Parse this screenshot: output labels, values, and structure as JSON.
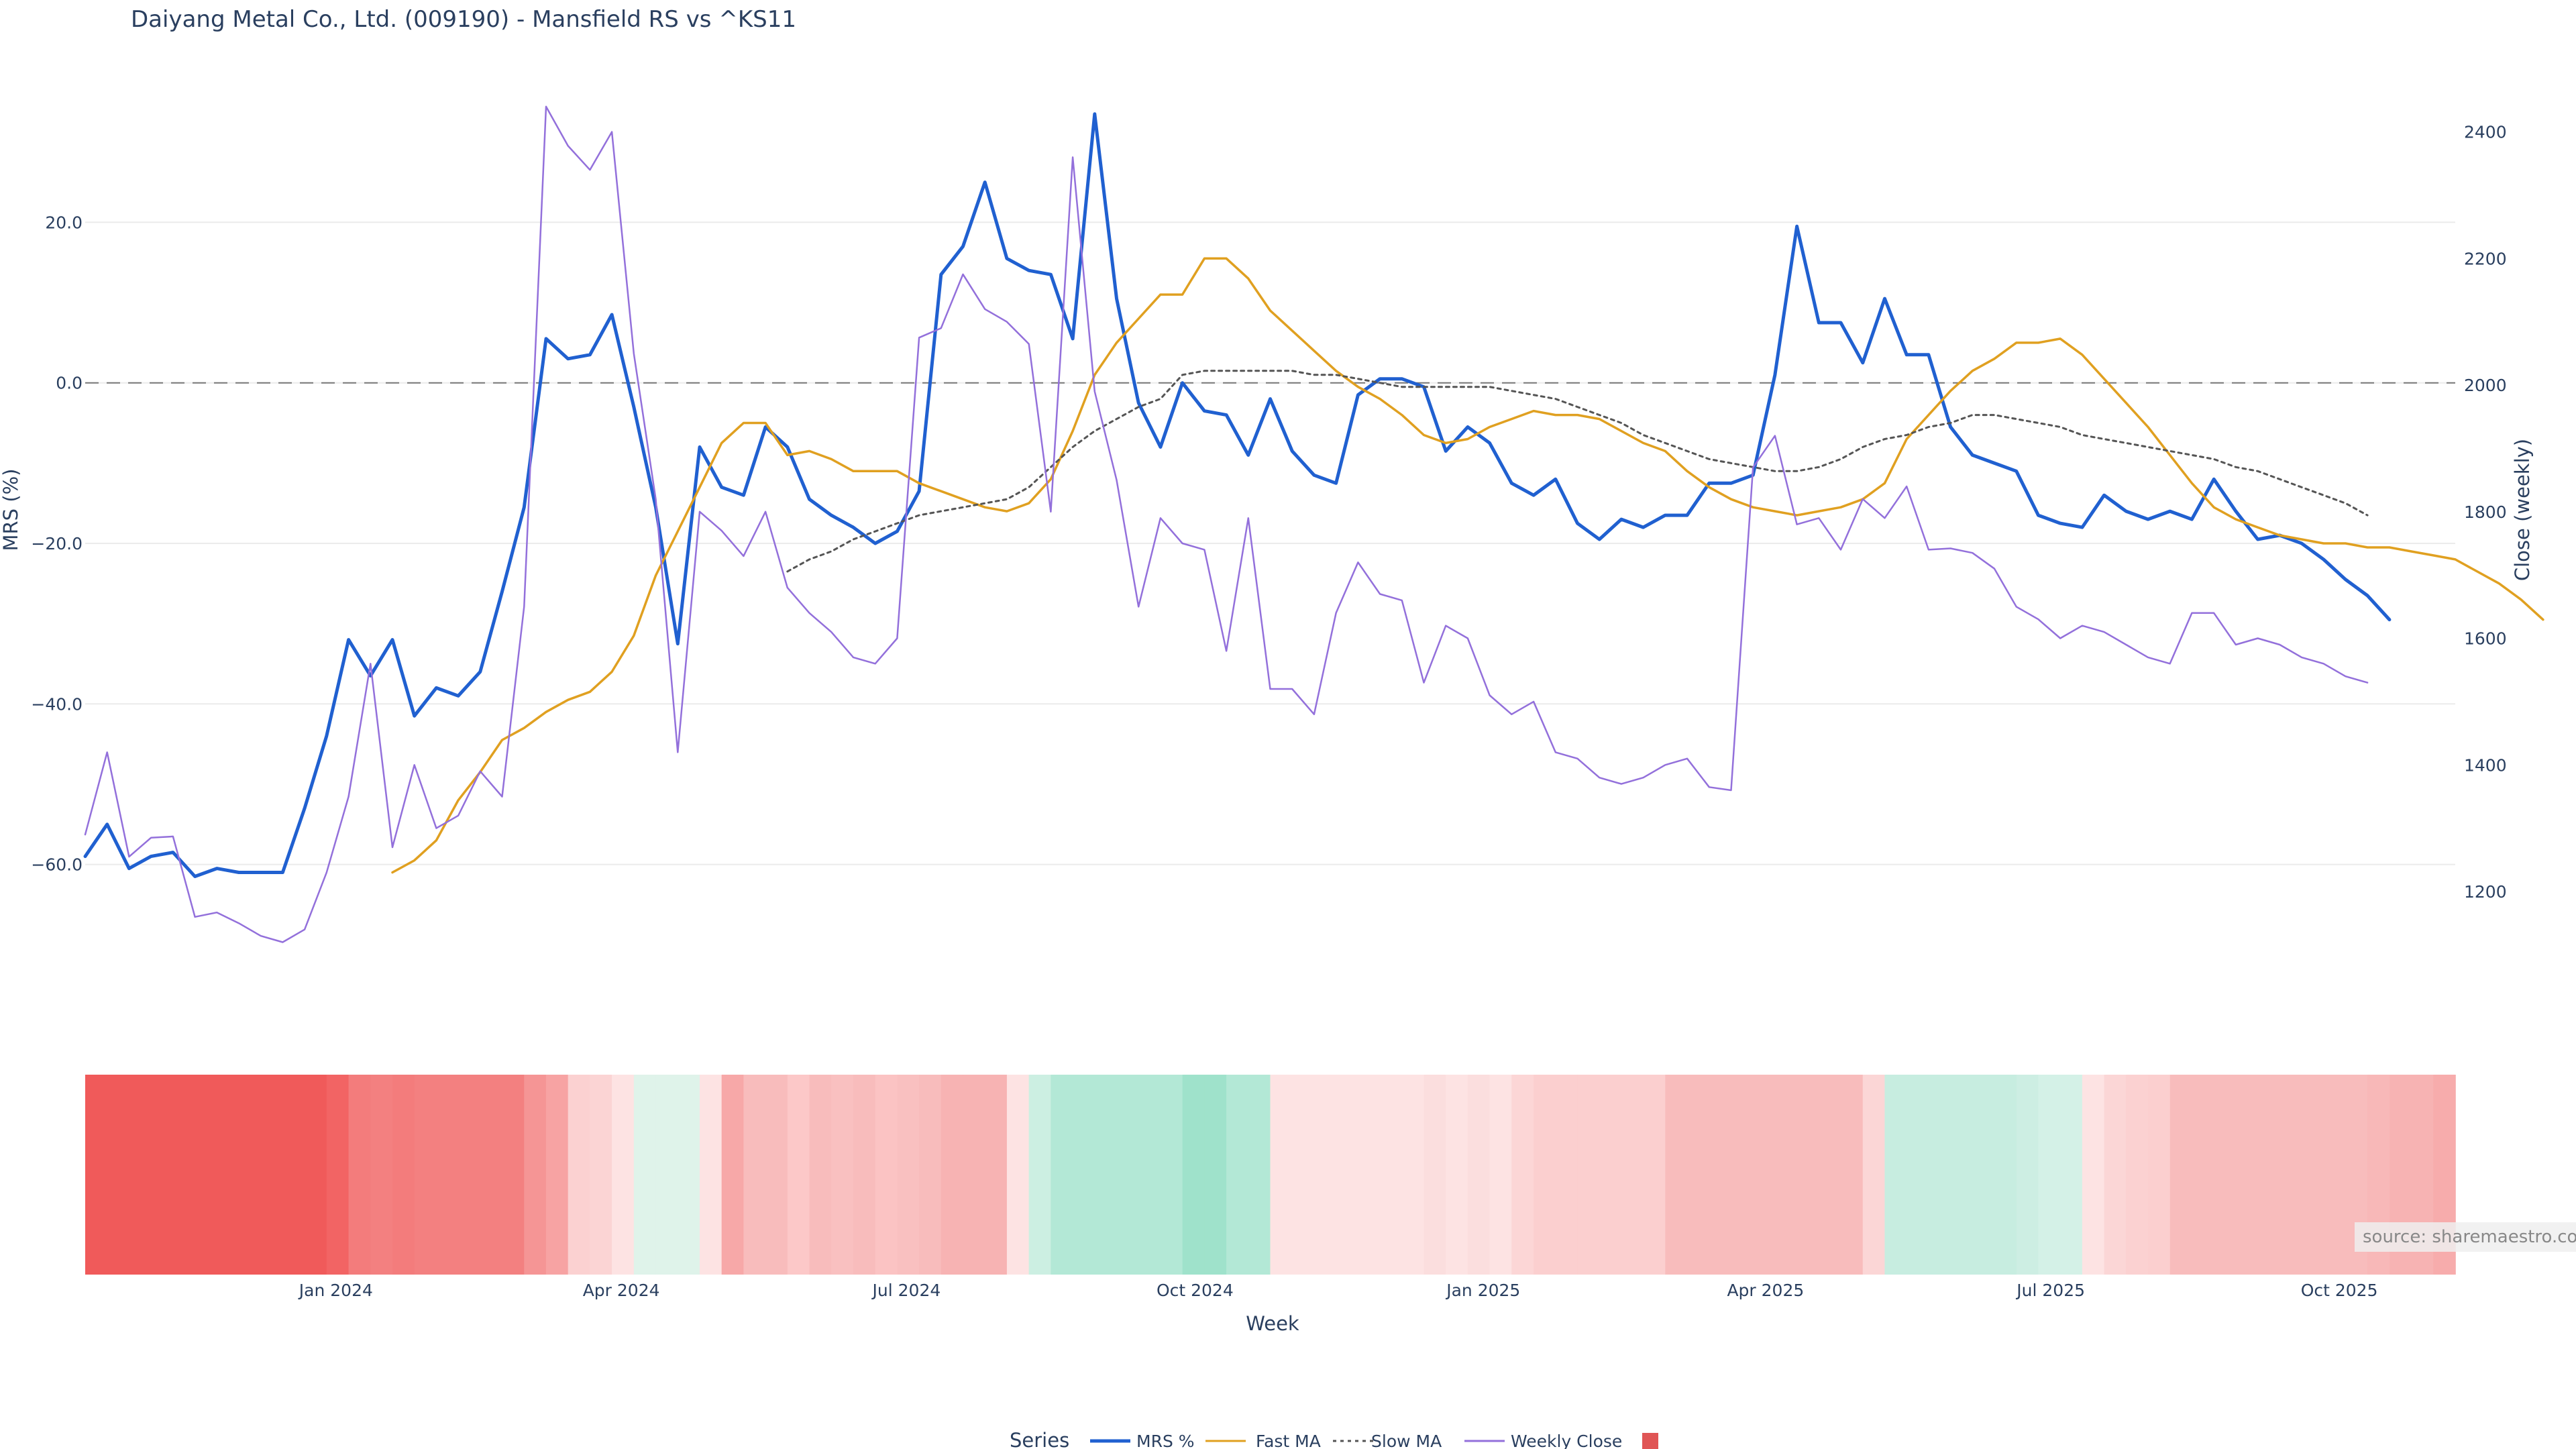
{
  "chart_data": {
    "type": "line",
    "title": "Daiyang Metal Co., Ltd. (009190) - Mansfield RS vs ^KS11",
    "xlabel": "Week",
    "ylabel_left": "MRS (%)",
    "ylabel_right": "Close (weekly)",
    "x_range": [
      "2023-10-13",
      "2025-11-07"
    ],
    "x_ticks": [
      {
        "date": "2024-01-01",
        "label": "Jan 2024"
      },
      {
        "date": "2024-04-01",
        "label": "Apr 2024"
      },
      {
        "date": "2024-07-01",
        "label": "Jul 2024"
      },
      {
        "date": "2024-10-01",
        "label": "Oct 2024"
      },
      {
        "date": "2025-01-01",
        "label": "Jan 2025"
      },
      {
        "date": "2025-04-01",
        "label": "Apr 2025"
      },
      {
        "date": "2025-07-01",
        "label": "Jul 2025"
      },
      {
        "date": "2025-10-01",
        "label": "Oct 2025"
      }
    ],
    "y_left": {
      "range": [
        -76,
        36
      ],
      "ticks": [
        20,
        0,
        -20,
        -40,
        -60
      ],
      "tick_labels": [
        "20.0",
        "0.0",
        "−20.0",
        "−40.0",
        "−60.0"
      ],
      "zero_line": 0
    },
    "y_right": {
      "range": [
        1040,
        2460
      ],
      "ticks": [
        2400,
        2200,
        2000,
        1800,
        1600,
        1400,
        1200
      ],
      "tick_labels": [
        "2400",
        "2200",
        "2000",
        "1800",
        "1600",
        "1400",
        "1200"
      ]
    },
    "series": [
      {
        "name": "MRS %",
        "color": "#2060d0",
        "axis": "left",
        "style": "solid",
        "start": "2023-10-13",
        "values": [
          -59,
          -55,
          -60.5,
          -59,
          -58.5,
          -61.5,
          -60.5,
          -61,
          -61,
          -61,
          -53,
          -44,
          -32,
          -36.5,
          -32,
          -41.5,
          -38,
          -39,
          -36,
          -26,
          -15.5,
          5.5,
          3,
          3.5,
          8.5,
          -3,
          -15.5,
          -32.5,
          -8,
          -13,
          -14,
          -5.5,
          -8,
          -14.5,
          -16.5,
          -18,
          -20,
          -18.5,
          -13.5,
          13.5,
          17,
          25,
          15.5,
          14,
          13.5,
          5.5,
          33.5,
          10.5,
          -2.5,
          -8,
          0,
          -3.5,
          -4,
          -9,
          -2,
          -8.5,
          -11.5,
          -12.5,
          -1.5,
          0.5,
          0.5,
          -0.5,
          -8.5,
          -5.5,
          -7.5,
          -12.5,
          -14,
          -12,
          -17.5,
          -19.5,
          -17,
          -18,
          -16.5,
          -16.5,
          -12.5,
          -12.5,
          -11.5,
          1,
          19.5,
          7.5,
          7.5,
          2.5,
          10.5,
          3.5,
          3.5,
          -5.5,
          -9,
          -10,
          -11,
          -16.5,
          -17.5,
          -18,
          -14,
          -16,
          -17,
          -16,
          -17,
          -12,
          -16,
          -19.5,
          -19,
          -20,
          -22,
          -24.5,
          -26.5,
          -29.5
        ]
      },
      {
        "name": "Fast MA",
        "color": "#e0a020",
        "axis": "left",
        "style": "solid",
        "start": "2024-01-19",
        "values": [
          -61,
          -59.5,
          -57,
          -52,
          -48.5,
          -44.5,
          -43,
          -41,
          -39.5,
          -38.5,
          -36,
          -31.5,
          -24,
          -18.5,
          -13,
          -7.5,
          -5,
          -5,
          -9,
          -8.5,
          -9.5,
          -11,
          -11,
          -11,
          -12.5,
          -13.5,
          -14.5,
          -15.5,
          -16,
          -15,
          -12,
          -6,
          1,
          5,
          8,
          11,
          11,
          15.5,
          15.5,
          13,
          9,
          6.5,
          4,
          1.5,
          -0.5,
          -2,
          -4,
          -6.5,
          -7.5,
          -7,
          -5.5,
          -4.5,
          -3.5,
          -4,
          -4,
          -4.5,
          -6,
          -7.5,
          -8.5,
          -11,
          -13,
          -14.5,
          -15.5,
          -16,
          -16.5,
          -16,
          -15.5,
          -14.5,
          -12.5,
          -7,
          -4,
          -1,
          1.5,
          3,
          5,
          5,
          5.5,
          3.5,
          0.5,
          -2.5,
          -5.5,
          -9,
          -12.5,
          -15.5,
          -17,
          -18,
          -19,
          -19.5,
          -20,
          -20,
          -20.5,
          -20.5,
          -21,
          -21.5,
          -22,
          -23.5,
          -25,
          -27,
          -29.5
        ]
      },
      {
        "name": "Slow MA",
        "color": "#555555",
        "axis": "left",
        "style": "dotted",
        "start": "2024-05-24",
        "values": [
          -23.5,
          -22,
          -21,
          -19.5,
          -18.5,
          -17.5,
          -16.5,
          -16,
          -15.5,
          -15,
          -14.5,
          -13,
          -10.5,
          -8,
          -6,
          -4.5,
          -3,
          -2,
          1,
          1.5,
          1.5,
          1.5,
          1.5,
          1.5,
          1,
          1,
          0.5,
          0,
          -0.5,
          -0.5,
          -0.5,
          -0.5,
          -0.5,
          -1,
          -1.5,
          -2,
          -3,
          -4,
          -5,
          -6.5,
          -7.5,
          -8.5,
          -9.5,
          -10,
          -10.5,
          -11,
          -11,
          -10.5,
          -9.5,
          -8,
          -7,
          -6.5,
          -5.5,
          -5,
          -4,
          -4,
          -4.5,
          -5,
          -5.5,
          -6.5,
          -7,
          -7.5,
          -8,
          -8.5,
          -9,
          -9.5,
          -10.5,
          -11,
          -12,
          -13,
          -14,
          -15,
          -16.5
        ]
      },
      {
        "name": "Weekly Close",
        "color": "#9370db",
        "axis": "right",
        "style": "solid",
        "start": "2023-10-13",
        "values": [
          1290,
          1420,
          1255,
          1285,
          1287,
          1160,
          1167,
          1150,
          1130,
          1120,
          1140,
          1230,
          1350,
          1560,
          1270,
          1400,
          1300,
          1320,
          1390,
          1350,
          1650,
          2440,
          2378,
          2340,
          2400,
          2050,
          1820,
          1420,
          1800,
          1770,
          1730,
          1800,
          1680,
          1640,
          1610,
          1570,
          1560,
          1600,
          2075,
          2090,
          2175,
          2120,
          2100,
          2065,
          1800,
          2360,
          1990,
          1850,
          1650,
          1790,
          1750,
          1740,
          1580,
          1790,
          1520,
          1520,
          1480,
          1640,
          1720,
          1670,
          1660,
          1530,
          1620,
          1600,
          1510,
          1480,
          1500,
          1420,
          1410,
          1380,
          1370,
          1380,
          1400,
          1410,
          1365,
          1360,
          1870,
          1920,
          1780,
          1790,
          1740,
          1820,
          1790,
          1840,
          1740,
          1742,
          1735,
          1710,
          1650,
          1630,
          1600,
          1620,
          1610,
          1590,
          1570,
          1560,
          1640,
          1640,
          1590,
          1600,
          1590,
          1570,
          1560,
          1540,
          1530
        ]
      }
    ],
    "heatmap_strip": {
      "description": "weekly RS state band",
      "colors": [
        "#f05a5a",
        "#f05a5a",
        "#f05a5a",
        "#f05a5a",
        "#f05a5a",
        "#f05a5a",
        "#f05a5a",
        "#f05a5a",
        "#f05a5a",
        "#f05a5a",
        "#f05a5a",
        "#f26464",
        "#f37c7c",
        "#f38080",
        "#f37c7c",
        "#f38080",
        "#f38080",
        "#f38080",
        "#f38080",
        "#f38080",
        "#f59595",
        "#f7a3a3",
        "#fbd1d1",
        "#fbd4d4",
        "#fde3e3",
        "#dff3ea",
        "#dff3ea",
        "#dff3ea",
        "#fde3e3",
        "#f7a8a8",
        "#f8bcbc",
        "#f8bcbc",
        "#fcc8c8",
        "#f8bcbc",
        "#f9c0c0",
        "#f8bcbc",
        "#fbc3c3",
        "#f9c0c0",
        "#f8bcbc",
        "#f7b3b3",
        "#f7b3b3",
        "#f7b3b3",
        "#fde3e3",
        "#ccefe2",
        "#b3e8d6",
        "#b3e8d6",
        "#b3e8d6",
        "#b3e8d6",
        "#b3e8d6",
        "#b3e8d6",
        "#9fe2cb",
        "#9fe2cb",
        "#b3e8d6",
        "#b3e8d6",
        "#fde3e3",
        "#fde3e3",
        "#fde3e3",
        "#fde3e3",
        "#fde3e3",
        "#fde3e3",
        "#fde3e3",
        "#fbdede",
        "#fde3e3",
        "#fbdede",
        "#fde3e3",
        "#fcd6d6",
        "#fbcfcf",
        "#fbcfcf",
        "#fbcfcf",
        "#fbcfcf",
        "#fbcfcf",
        "#fbcfcf",
        "#f8bcbc",
        "#f8bcbc",
        "#f8bcbc",
        "#f8bcbc",
        "#f8bcbc",
        "#f8bcbc",
        "#f8bcbc",
        "#f8bcbc",
        "#f8bcbc",
        "#fbd6d6",
        "#c7ede0",
        "#c7ede0",
        "#c7ede0",
        "#c7ede0",
        "#c7ede0",
        "#c7ede0",
        "#cdeee3",
        "#d4f1e7",
        "#d4f1e7",
        "#fde3e3",
        "#fbd6d6",
        "#fbd1d1",
        "#fbcfcf",
        "#f8bcbc",
        "#f8bcbc",
        "#f8bcbc",
        "#f8bcbc",
        "#f8bcbc",
        "#f8bcbc",
        "#f8bcbc",
        "#f8bcbc",
        "#f8bcbc",
        "#f8b8b8",
        "#f7b3b3",
        "#f7b3b3",
        "#f7acac"
      ]
    }
  },
  "legend": {
    "title": "Series",
    "items": [
      "MRS %",
      "Fast MA",
      "Slow MA",
      "Weekly Close",
      ""
    ],
    "swatch_color": "#e05555"
  },
  "source_note": "source: sharemaestro.com"
}
